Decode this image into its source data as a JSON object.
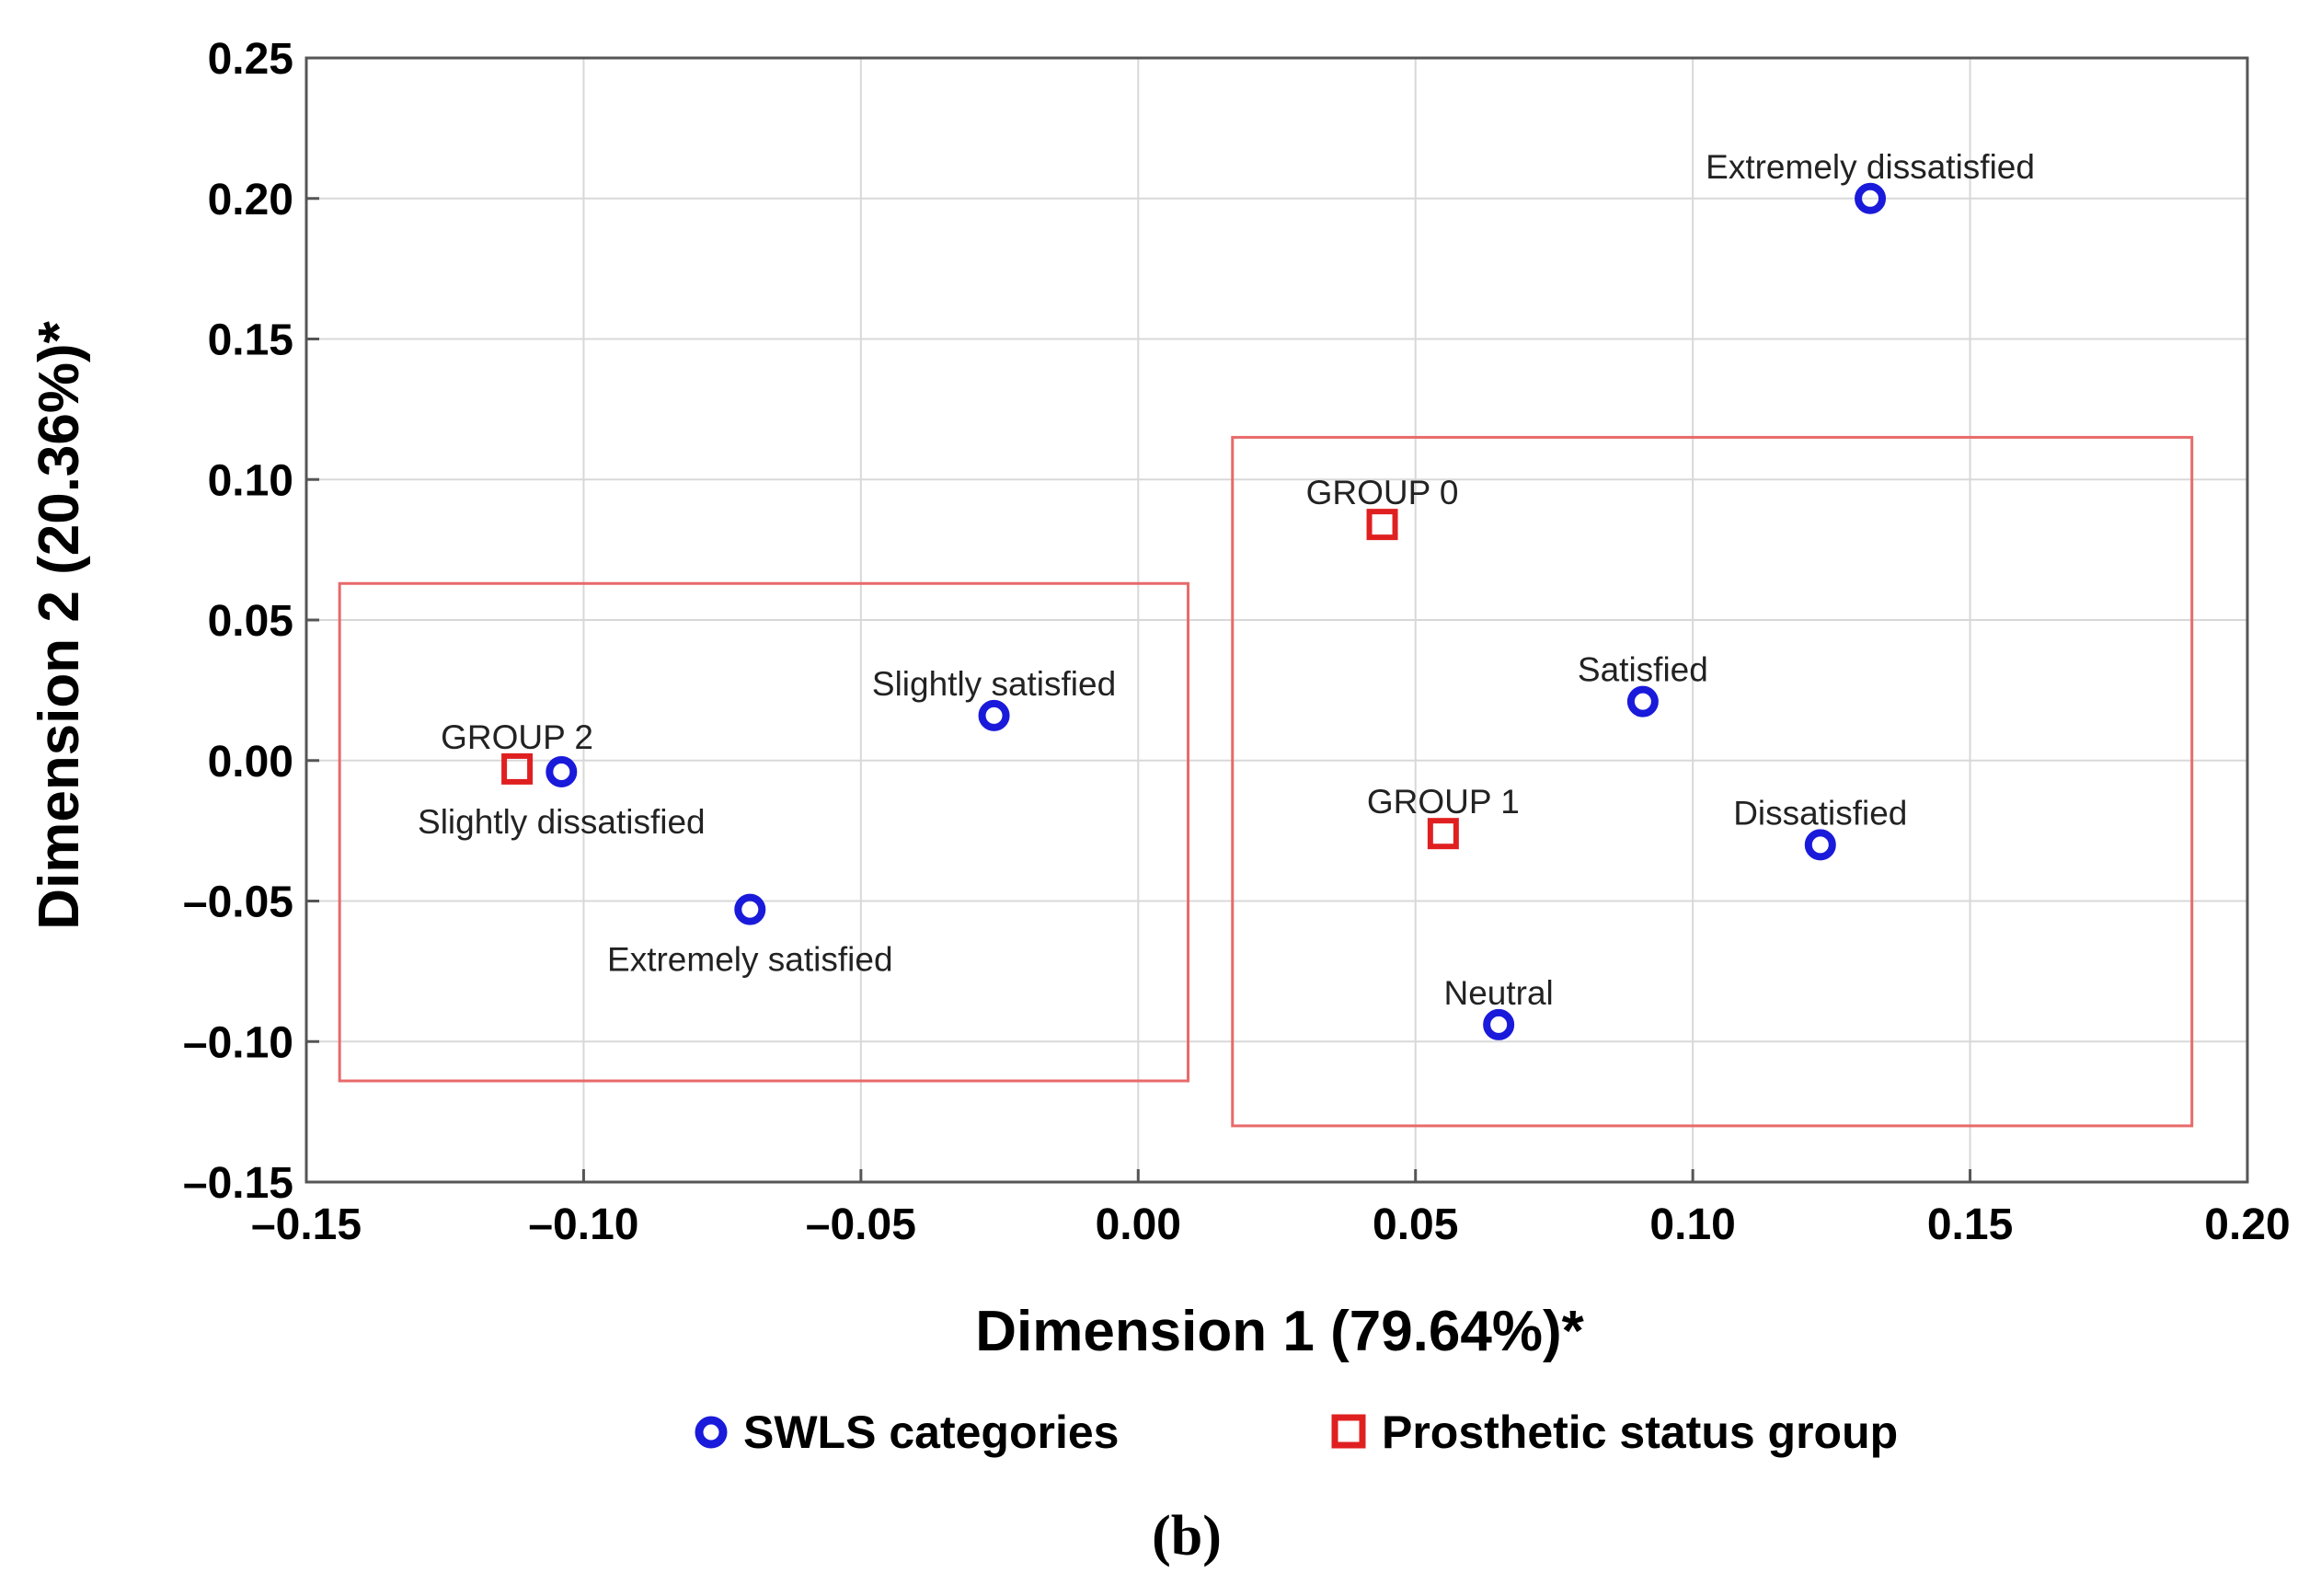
{
  "chart_data": {
    "type": "scatter",
    "xlabel": "Dimension 1 (79.64%)*",
    "ylabel": "Dimension 2 (20.36%)*",
    "xlim": [
      -0.15,
      0.2
    ],
    "ylim": [
      -0.15,
      0.25
    ],
    "xticks": [
      -0.15,
      -0.1,
      -0.05,
      0.0,
      0.05,
      0.1,
      0.15,
      0.2
    ],
    "yticks": [
      -0.15,
      -0.1,
      -0.05,
      0.0,
      0.05,
      0.1,
      0.15,
      0.2,
      0.25
    ],
    "xtick_labels": [
      "–0.15",
      "–0.10",
      "–0.05",
      "0.00",
      "0.05",
      "0.10",
      "0.15",
      "0.20"
    ],
    "ytick_labels": [
      "–0.15",
      "–0.10",
      "–0.05",
      "0.00",
      "0.05",
      "0.10",
      "0.15",
      "0.20",
      "0.25"
    ],
    "grid": true,
    "series": [
      {
        "name": "SWLS categories",
        "marker": "circle",
        "color": "#1a1adb",
        "points": [
          {
            "label": "Extremely dissatisfied",
            "x": 0.132,
            "y": 0.2,
            "label_pos": "above"
          },
          {
            "label": "Satisfied",
            "x": 0.091,
            "y": 0.021,
            "label_pos": "above"
          },
          {
            "label": "Slightly satisfied",
            "x": -0.026,
            "y": 0.016,
            "label_pos": "above"
          },
          {
            "label": "Slightly dissatisfied",
            "x": -0.104,
            "y": -0.004,
            "label_pos": "below"
          },
          {
            "label": "Dissatisfied",
            "x": 0.123,
            "y": -0.03,
            "label_pos": "above"
          },
          {
            "label": "Extremely satisfied",
            "x": -0.07,
            "y": -0.053,
            "label_pos": "below"
          },
          {
            "label": "Neutral",
            "x": 0.065,
            "y": -0.094,
            "label_pos": "above"
          }
        ]
      },
      {
        "name": "Prosthetic status group",
        "marker": "square",
        "color": "#e02020",
        "points": [
          {
            "label": "GROUP 0",
            "x": 0.044,
            "y": 0.084,
            "label_pos": "above"
          },
          {
            "label": "GROUP 1",
            "x": 0.055,
            "y": -0.026,
            "label_pos": "above"
          },
          {
            "label": "GROUP 2",
            "x": -0.112,
            "y": -0.003,
            "label_pos": "above"
          }
        ]
      }
    ],
    "cluster_boxes": [
      {
        "name": "left-cluster",
        "x": [
          -0.144,
          0.009
        ],
        "y": [
          -0.114,
          0.063
        ]
      },
      {
        "name": "right-cluster",
        "x": [
          0.017,
          0.19
        ],
        "y": [
          -0.13,
          0.115
        ]
      }
    ],
    "legend": {
      "placement": "bottom-center",
      "items": [
        {
          "label": "SWLS categories",
          "marker": "circle",
          "color": "#1a1adb"
        },
        {
          "label": "Prosthetic status group",
          "marker": "square",
          "color": "#e02020"
        }
      ]
    },
    "panel_label": "(b)"
  }
}
